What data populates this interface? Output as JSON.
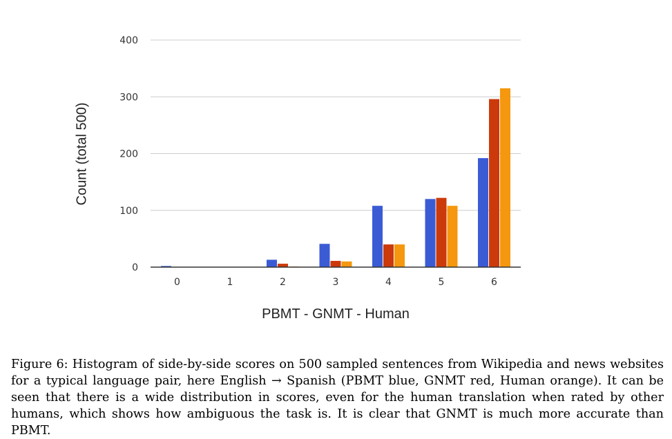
{
  "chart_data": {
    "type": "bar",
    "categories": [
      "0",
      "1",
      "2",
      "3",
      "4",
      "5",
      "6"
    ],
    "series": [
      {
        "name": "PBMT",
        "color": "#3b5bd5",
        "values": [
          2,
          0,
          13,
          41,
          108,
          120,
          192
        ]
      },
      {
        "name": "GNMT",
        "color": "#cc3a0c",
        "values": [
          0,
          0,
          6,
          11,
          40,
          122,
          296
        ]
      },
      {
        "name": "Human",
        "color": "#f5970f",
        "values": [
          0,
          0,
          1,
          10,
          40,
          108,
          315
        ]
      }
    ],
    "title": "",
    "xlabel": "PBMT - GNMT - Human",
    "ylabel": "Count (total 500)",
    "ylim": [
      0,
      400
    ],
    "yticks": [
      "0",
      "100",
      "200",
      "300",
      "400"
    ],
    "grid": true,
    "legend": "none"
  },
  "caption": "Figure 6: Histogram of side-by-side scores on 500 sampled sentences from Wikipedia and news websites for a typical language pair, here English → Spanish (PBMT blue, GNMT red, Human orange). It can be seen that there is a wide distribution in scores, even for the human translation when rated by other humans, which shows how ambiguous the task is. It is clear that GNMT is much more accurate than PBMT."
}
